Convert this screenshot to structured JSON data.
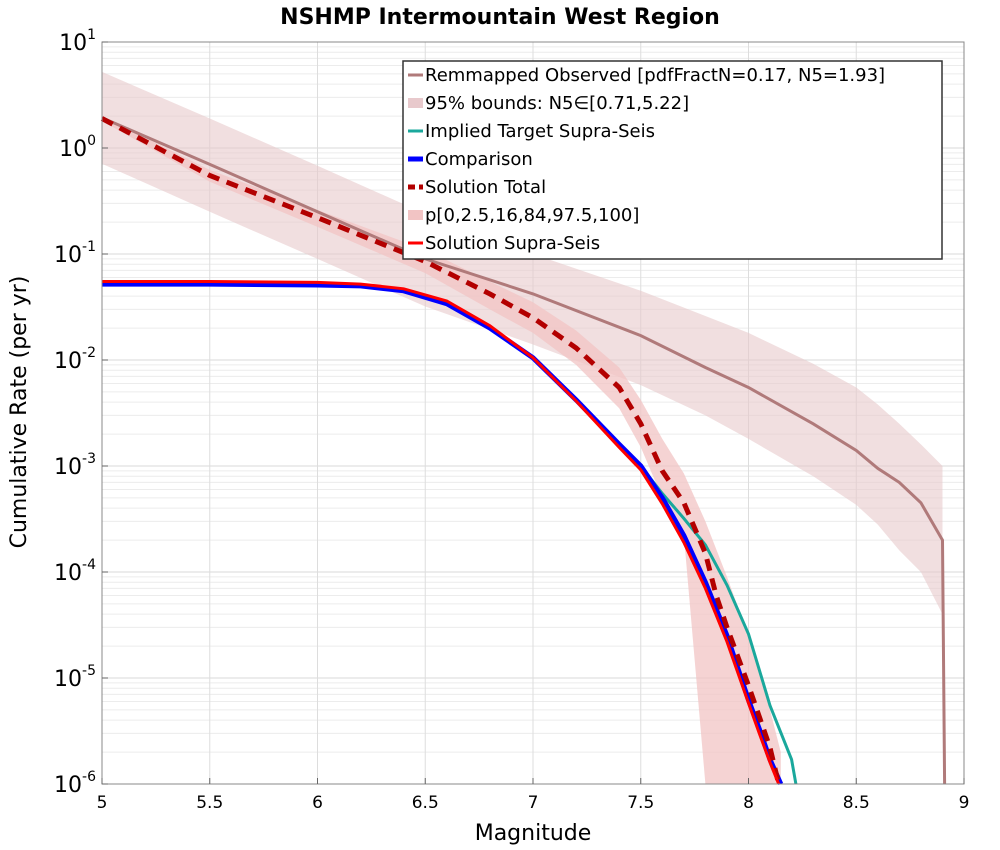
{
  "chart_data": {
    "type": "line",
    "title": "NSHMP Intermountain West Region",
    "xlabel": "Magnitude",
    "ylabel": "Cumulative Rate (per yr)",
    "xlim": [
      5,
      9
    ],
    "ylim": [
      1e-06,
      10
    ],
    "yscale": "log",
    "grid": true,
    "legend_position": "top-right",
    "x_ticks": [
      "5",
      "5.5",
      "6",
      "6.5",
      "7",
      "7.5",
      "8",
      "8.5",
      "9"
    ],
    "y_ticks": [
      {
        "base": "10",
        "exp": "1"
      },
      {
        "base": "10",
        "exp": "0"
      },
      {
        "base": "10",
        "exp": "-1"
      },
      {
        "base": "10",
        "exp": "-2"
      },
      {
        "base": "10",
        "exp": "-3"
      },
      {
        "base": "10",
        "exp": "-4"
      },
      {
        "base": "10",
        "exp": "-5"
      },
      {
        "base": "10",
        "exp": "-6"
      }
    ],
    "legend": [
      {
        "label": "Remmapped Observed [pdfFractN=0.17, N5=1.93]",
        "kind": "line",
        "color": "#b07a7a"
      },
      {
        "label": "95% bounds: N5∈[0.71,5.22]",
        "kind": "band",
        "color": "#e8c9cc"
      },
      {
        "label": "Implied Target Supra-Seis",
        "kind": "line",
        "color": "#1aa89c"
      },
      {
        "label": "Comparison",
        "kind": "line",
        "color": "#0000ff"
      },
      {
        "label": "Solution Total",
        "kind": "dashed",
        "color": "#b30000"
      },
      {
        "label": "p[0,2.5,16,84,97.5,100]",
        "kind": "band",
        "color": "#f2c4c4"
      },
      {
        "label": "Solution Supra-Seis",
        "kind": "line",
        "color": "#ff0000"
      }
    ],
    "series": [
      {
        "name": "Remmapped Observed [pdfFractN=0.17, N5=1.93]",
        "color": "#b07a7a",
        "x": [
          5.0,
          5.5,
          6.0,
          6.5,
          7.0,
          7.5,
          7.8,
          8.0,
          8.3,
          8.5,
          8.6,
          8.7,
          8.8,
          8.9,
          8.91
        ],
        "y": [
          1.93,
          0.7,
          0.25,
          0.09,
          0.042,
          0.017,
          0.0085,
          0.0055,
          0.0025,
          0.0014,
          0.00095,
          0.0007,
          0.00045,
          0.0002,
          1e-06
        ]
      },
      {
        "name": "95% bounds: N5∈[0.71,5.22]",
        "color": "#e8c9cc",
        "x": [
          5.0,
          5.5,
          6.0,
          6.5,
          7.0,
          7.5,
          7.8,
          8.0,
          8.3,
          8.5,
          8.6,
          8.7,
          8.8,
          8.9
        ],
        "upper": [
          5.22,
          1.9,
          0.68,
          0.24,
          0.1,
          0.045,
          0.026,
          0.018,
          0.0092,
          0.0055,
          0.0038,
          0.0025,
          0.0016,
          0.001
        ],
        "lower": [
          0.71,
          0.25,
          0.09,
          0.032,
          0.014,
          0.0058,
          0.003,
          0.0018,
          0.0008,
          0.00043,
          0.00028,
          0.00016,
          0.0001,
          4e-05
        ]
      },
      {
        "name": "Implied Target Supra-Seis",
        "color": "#1aa89c",
        "x": [
          5.0,
          5.5,
          6.0,
          6.2,
          6.4,
          6.6,
          6.8,
          7.0,
          7.2,
          7.4,
          7.5,
          7.6,
          7.7,
          7.8,
          7.9,
          8.0,
          8.1,
          8.2,
          8.22
        ],
        "y": [
          0.052,
          0.052,
          0.051,
          0.05,
          0.045,
          0.034,
          0.02,
          0.0105,
          0.0042,
          0.0016,
          0.001,
          0.00055,
          0.00032,
          0.00018,
          7.5e-05,
          2.6e-05,
          5.5e-06,
          1.7e-06,
          1e-06
        ]
      },
      {
        "name": "Comparison",
        "color": "#0000ff",
        "x": [
          5.0,
          5.5,
          6.0,
          6.2,
          6.4,
          6.6,
          6.8,
          7.0,
          7.2,
          7.4,
          7.5,
          7.6,
          7.7,
          7.8,
          7.9,
          8.0,
          8.05,
          8.1,
          8.15
        ],
        "y": [
          0.052,
          0.052,
          0.051,
          0.05,
          0.045,
          0.034,
          0.02,
          0.0105,
          0.0042,
          0.0016,
          0.001,
          0.0005,
          0.00022,
          8e-05,
          2.5e-05,
          6.2e-06,
          3.3e-06,
          1.7e-06,
          1e-06
        ]
      },
      {
        "name": "Solution Total",
        "color": "#b30000",
        "x": [
          5.0,
          5.5,
          6.0,
          6.5,
          6.8,
          7.0,
          7.2,
          7.4,
          7.5,
          7.6,
          7.7,
          7.8,
          7.85,
          7.9,
          8.0,
          8.1,
          8.14
        ],
        "y": [
          1.9,
          0.55,
          0.22,
          0.085,
          0.042,
          0.025,
          0.013,
          0.0055,
          0.0025,
          0.0009,
          0.00045,
          0.00015,
          6e-05,
          3e-05,
          8.5e-06,
          2.2e-06,
          1e-06
        ]
      },
      {
        "name": "p[0,2.5,16,84,97.5,100]",
        "color": "#f2c4c4",
        "x": [
          5.0,
          5.5,
          6.0,
          6.5,
          6.8,
          7.0,
          7.2,
          7.4,
          7.5,
          7.6,
          7.7,
          7.8,
          7.9,
          8.0,
          8.1,
          8.15
        ],
        "upper": [
          2.0,
          0.62,
          0.26,
          0.11,
          0.055,
          0.035,
          0.019,
          0.0085,
          0.0042,
          0.0018,
          0.00085,
          0.0003,
          9e-05,
          2.5e-05,
          5e-06,
          2e-06
        ],
        "lower": [
          1.8,
          0.48,
          0.18,
          0.066,
          0.03,
          0.018,
          0.009,
          0.0035,
          0.0015,
          0.0005,
          0.00022,
          1e-06,
          1e-06,
          1e-06,
          1e-06,
          1e-06
        ]
      },
      {
        "name": "Solution Supra-Seis",
        "color": "#ff0000",
        "x": [
          5.0,
          5.5,
          6.0,
          6.2,
          6.4,
          6.6,
          6.8,
          7.0,
          7.2,
          7.4,
          7.5,
          7.6,
          7.7,
          7.8,
          7.9,
          8.0,
          8.05,
          8.1,
          8.14
        ],
        "y": [
          0.055,
          0.055,
          0.054,
          0.052,
          0.047,
          0.036,
          0.021,
          0.0105,
          0.0041,
          0.0015,
          0.00092,
          0.00044,
          0.00019,
          7e-05,
          2.2e-05,
          5.8e-06,
          3e-06,
          1.6e-06,
          1e-06
        ]
      }
    ]
  }
}
